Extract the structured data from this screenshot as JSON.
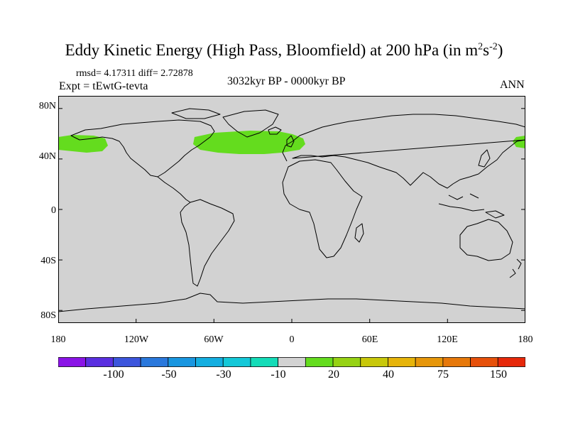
{
  "title": {
    "main": "Eddy Kinetic Energy (High Pass, Bloomfield) at 200 hPa (in m",
    "sup1": "2",
    "mid": "s",
    "sup2": "-2",
    "end": ")"
  },
  "stats": "rmsd= 4.17311 diff= 2.72878",
  "expt": "Expt = tEwtG-tevta",
  "period": "3032kyr BP - 0000kyr BP",
  "season": "ANN",
  "y_labels": [
    "80N",
    "40N",
    "0",
    "40S",
    "80S"
  ],
  "x_labels": [
    "180",
    "120W",
    "60W",
    "0",
    "60E",
    "120E",
    "180"
  ],
  "colorbar": {
    "colors": [
      "#8a14e6",
      "#5a2fe0",
      "#3c55dc",
      "#2a78dc",
      "#1996e0",
      "#14aee0",
      "#14c8d8",
      "#14dcb8",
      "#d2d2d2",
      "#64dc1e",
      "#96d214",
      "#c8c80a",
      "#e6b40a",
      "#e6960a",
      "#e6780a",
      "#e6500a",
      "#e6280a"
    ],
    "labels": [
      "-100",
      "-50",
      "-30",
      "-10",
      "20",
      "40",
      "75",
      "150"
    ]
  },
  "colors": {
    "ocean": "#d2d2d2",
    "positive_anomaly": "#64dc1e",
    "coast": "#000000"
  }
}
